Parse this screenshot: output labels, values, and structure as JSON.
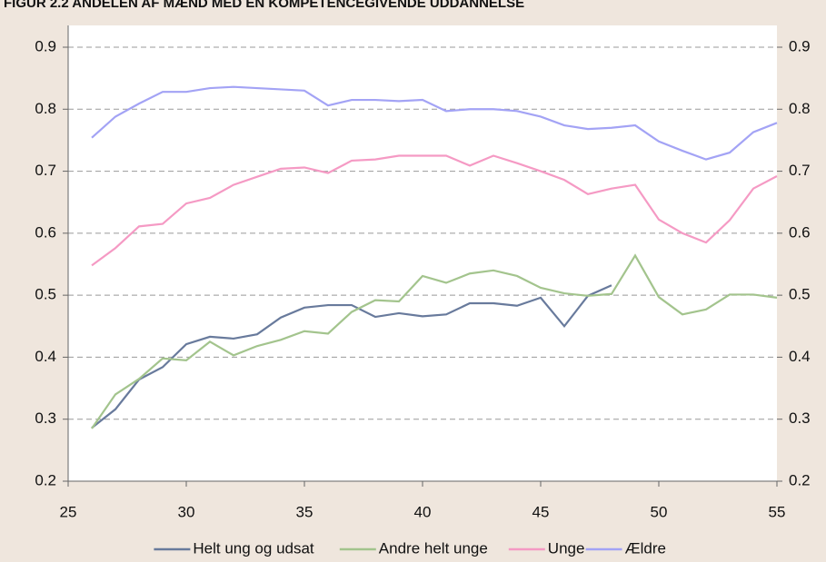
{
  "chart_data": {
    "type": "line",
    "title": "FIGUR 2.2 ANDELEN AF MÆND MED EN KOMPETENCEGIVENDE UDDANNELSE",
    "x": [
      26,
      27,
      28,
      29,
      30,
      31,
      32,
      33,
      34,
      35,
      36,
      37,
      38,
      39,
      40,
      41,
      42,
      43,
      44,
      45,
      46,
      47,
      48,
      49,
      50,
      51,
      52,
      53,
      54,
      55
    ],
    "series": [
      {
        "name": "Helt ung og udsat",
        "color": "#687a9c",
        "values": [
          0.286,
          0.316,
          0.364,
          0.384,
          0.421,
          0.433,
          0.43,
          0.437,
          0.464,
          0.48,
          0.484,
          0.484,
          0.465,
          0.471,
          0.466,
          0.469,
          0.487,
          0.487,
          0.483,
          0.496,
          0.45,
          0.499,
          0.516,
          null,
          null,
          null,
          null,
          null,
          null,
          null
        ]
      },
      {
        "name": "Andre helt unge",
        "color": "#a3c48d",
        "values": [
          0.285,
          0.34,
          0.365,
          0.398,
          0.395,
          0.425,
          0.403,
          0.418,
          0.428,
          0.442,
          0.438,
          0.473,
          0.492,
          0.49,
          0.531,
          0.52,
          0.535,
          0.54,
          0.531,
          0.512,
          0.503,
          0.499,
          0.502,
          0.564,
          0.497,
          0.469,
          0.477,
          0.501,
          0.501,
          0.496
        ]
      },
      {
        "name": "Unge",
        "color": "#f59ac4",
        "values": [
          0.548,
          0.576,
          0.611,
          0.615,
          0.648,
          0.657,
          0.678,
          0.691,
          0.704,
          0.706,
          0.697,
          0.717,
          0.719,
          0.725,
          0.725,
          0.725,
          0.709,
          0.725,
          0.713,
          0.7,
          0.686,
          0.663,
          0.672,
          0.678,
          0.622,
          0.6,
          0.585,
          0.621,
          0.672,
          0.692
        ]
      },
      {
        "name": "Ældre",
        "color": "#a3a3f5",
        "values": [
          0.754,
          0.788,
          0.809,
          0.828,
          0.828,
          0.834,
          0.836,
          0.834,
          0.832,
          0.83,
          0.806,
          0.815,
          0.815,
          0.813,
          0.815,
          0.797,
          0.8,
          0.8,
          0.797,
          0.788,
          0.774,
          0.768,
          0.77,
          0.774,
          0.748,
          0.733,
          0.719,
          0.73,
          0.763,
          0.778
        ]
      }
    ],
    "xlim": [
      25,
      55
    ],
    "xticks": [
      25,
      30,
      35,
      40,
      45,
      50,
      55
    ],
    "ylim": [
      0.2,
      0.9
    ],
    "yticks": [
      0.2,
      0.3,
      0.4,
      0.5,
      0.6,
      0.7,
      0.8,
      0.9
    ],
    "y2lim": [
      0.2,
      0.9
    ],
    "y2ticks": [
      0.2,
      0.3,
      0.4,
      0.5,
      0.6,
      0.7,
      0.8,
      0.9
    ],
    "grid": true,
    "legend": "bottom"
  }
}
